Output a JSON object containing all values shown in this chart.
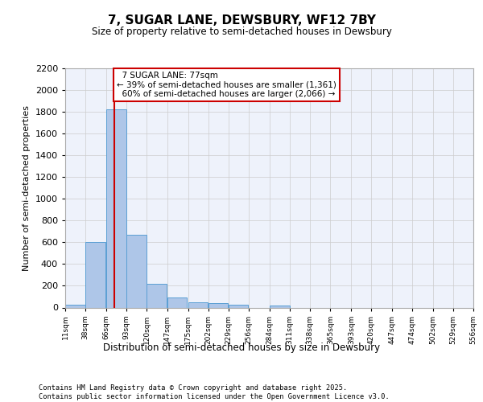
{
  "title_line1": "7, SUGAR LANE, DEWSBURY, WF12 7BY",
  "title_line2": "Size of property relative to semi-detached houses in Dewsbury",
  "xlabel": "Distribution of semi-detached houses by size in Dewsbury",
  "ylabel": "Number of semi-detached properties",
  "footer": "Contains HM Land Registry data © Crown copyright and database right 2025.\nContains public sector information licensed under the Open Government Licence v3.0.",
  "bins": [
    "11sqm",
    "38sqm",
    "66sqm",
    "93sqm",
    "120sqm",
    "147sqm",
    "175sqm",
    "202sqm",
    "229sqm",
    "256sqm",
    "284sqm",
    "311sqm",
    "338sqm",
    "365sqm",
    "393sqm",
    "420sqm",
    "447sqm",
    "474sqm",
    "502sqm",
    "529sqm",
    "556sqm"
  ],
  "bar_values": [
    25,
    600,
    1820,
    670,
    215,
    95,
    45,
    38,
    25,
    0,
    15,
    0,
    0,
    0,
    0,
    0,
    0,
    0,
    0,
    0
  ],
  "bar_color": "#aec6e8",
  "bar_edge_color": "#5a9fd4",
  "grid_color": "#cccccc",
  "bg_color": "#eef2fb",
  "annotation_box_color": "#cc0000",
  "vline_color": "#cc0000",
  "property_label": "7 SUGAR LANE: 77sqm",
  "pct_smaller": 39,
  "count_smaller": 1361,
  "pct_larger": 60,
  "count_larger": 2066,
  "ylim": [
    0,
    2200
  ],
  "yticks": [
    0,
    200,
    400,
    600,
    800,
    1000,
    1200,
    1400,
    1600,
    1800,
    2000,
    2200
  ],
  "vline_x": 77,
  "bin_starts": [
    11,
    38,
    66,
    93,
    120,
    147,
    175,
    202,
    229,
    256,
    284,
    311,
    338,
    365,
    393,
    420,
    447,
    474,
    502,
    529
  ],
  "bin_width": 27,
  "xlim_min": 11,
  "xlim_max": 556
}
